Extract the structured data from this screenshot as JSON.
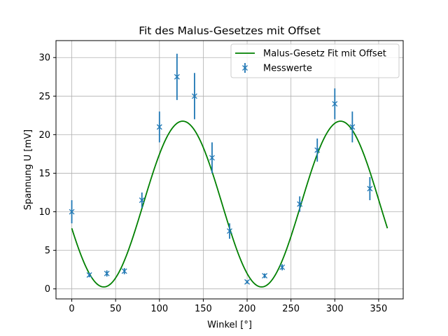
{
  "chart_data": {
    "type": "scatter",
    "title": "Fit des Malus-Gesetzes mit Offset",
    "xlabel": "Winkel [°]",
    "ylabel": "Spannung U [mV]",
    "xlim": [
      -18,
      378
    ],
    "ylim": [
      -1.3,
      32.2
    ],
    "xticks": [
      0,
      50,
      100,
      150,
      200,
      250,
      300,
      350
    ],
    "yticks": [
      0,
      5,
      10,
      15,
      20,
      25,
      30
    ],
    "grid": true,
    "legend_position": "top-right",
    "colors": {
      "fit": "#008000",
      "points": "#1f77b4"
    },
    "series": [
      {
        "name": "Malus-Gesetz Fit mit Offset",
        "kind": "line",
        "model": {
          "amplitude": 21.5,
          "phase_deg": 126.5,
          "offset": 0.25,
          "x_range": [
            0,
            360
          ]
        }
      },
      {
        "name": "Messwerte",
        "kind": "errorbar",
        "points": [
          {
            "x": 0,
            "y": 10.0,
            "err": 1.5
          },
          {
            "x": 20,
            "y": 1.8,
            "err": 0.3
          },
          {
            "x": 40,
            "y": 2.0,
            "err": 0.4
          },
          {
            "x": 60,
            "y": 2.3,
            "err": 0.4
          },
          {
            "x": 80,
            "y": 11.5,
            "err": 1.0
          },
          {
            "x": 100,
            "y": 21.0,
            "err": 2.0
          },
          {
            "x": 120,
            "y": 27.5,
            "err": 3.0
          },
          {
            "x": 140,
            "y": 25.0,
            "err": 3.0
          },
          {
            "x": 160,
            "y": 17.0,
            "err": 2.0
          },
          {
            "x": 180,
            "y": 7.5,
            "err": 1.0
          },
          {
            "x": 200,
            "y": 0.9,
            "err": 0.2
          },
          {
            "x": 220,
            "y": 1.7,
            "err": 0.3
          },
          {
            "x": 240,
            "y": 2.8,
            "err": 0.4
          },
          {
            "x": 260,
            "y": 11.0,
            "err": 1.0
          },
          {
            "x": 280,
            "y": 18.0,
            "err": 1.5
          },
          {
            "x": 300,
            "y": 24.0,
            "err": 2.0
          },
          {
            "x": 320,
            "y": 21.0,
            "err": 2.0
          },
          {
            "x": 340,
            "y": 13.0,
            "err": 1.5
          }
        ]
      }
    ]
  }
}
